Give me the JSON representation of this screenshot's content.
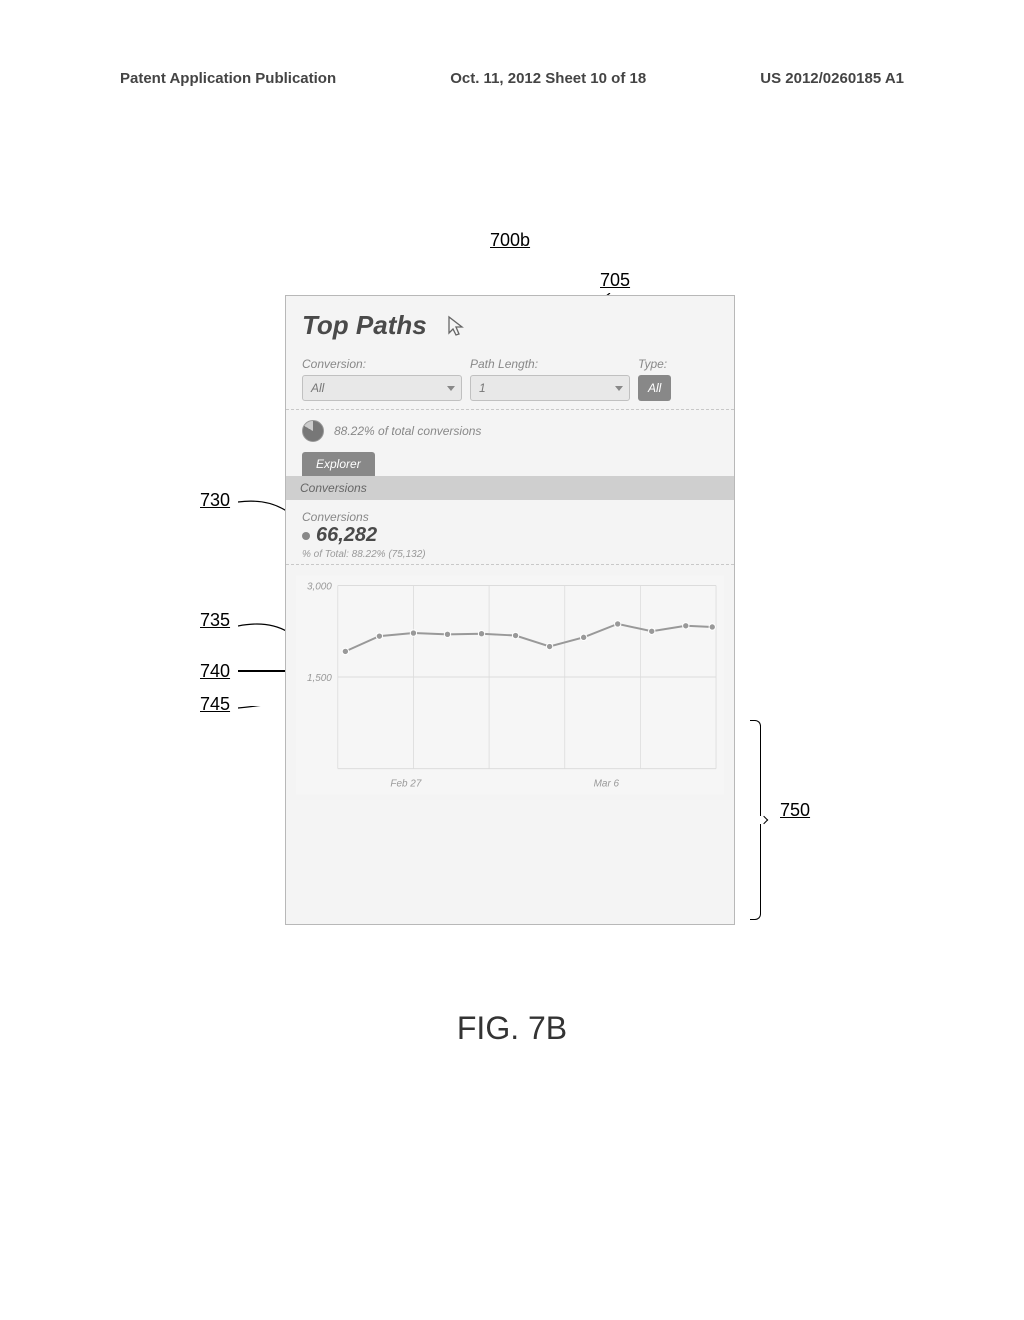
{
  "header": {
    "left": "Patent Application Publication",
    "center": "Oct. 11, 2012  Sheet 10 of 18",
    "right": "US 2012/0260185 A1"
  },
  "refs": {
    "r700b": "700b",
    "r705": "705",
    "r730": "730",
    "r735": "735",
    "r740": "740",
    "r745": "745",
    "r750": "750"
  },
  "panel": {
    "title": "Top Paths",
    "filters": {
      "conversion_label": "Conversion:",
      "conversion_value": "All",
      "pathlength_label": "Path Length:",
      "pathlength_value": "1",
      "type_label": "Type:",
      "type_value": "All"
    },
    "summary": "88.22% of total conversions",
    "explorer_tab": "Explorer",
    "conversions_bar": "Conversions",
    "stat": {
      "label": "Conversions",
      "value": "66,282",
      "sub": "% of Total: 88.22% (75,132)"
    }
  },
  "chart": {
    "type": "line",
    "ylim": [
      0,
      3000
    ],
    "yticks": [
      1500,
      3000
    ],
    "ytick_labels": [
      "1,500",
      "3,000"
    ],
    "xtick_labels": [
      "Feb 27",
      "Mar 6"
    ],
    "xtick_positions": [
      0.18,
      0.71
    ],
    "grid_color": "#dcdcdc",
    "line_color": "#999999",
    "marker_color": "#999999",
    "background_color": "#f6f6f6",
    "points": [
      {
        "x": 0.02,
        "y": 1920
      },
      {
        "x": 0.11,
        "y": 2170
      },
      {
        "x": 0.2,
        "y": 2220
      },
      {
        "x": 0.29,
        "y": 2200
      },
      {
        "x": 0.38,
        "y": 2210
      },
      {
        "x": 0.47,
        "y": 2180
      },
      {
        "x": 0.56,
        "y": 2000
      },
      {
        "x": 0.65,
        "y": 2150
      },
      {
        "x": 0.74,
        "y": 2370
      },
      {
        "x": 0.83,
        "y": 2250
      },
      {
        "x": 0.92,
        "y": 2340
      },
      {
        "x": 0.99,
        "y": 2320
      }
    ]
  },
  "figure_caption": "FIG. 7B"
}
